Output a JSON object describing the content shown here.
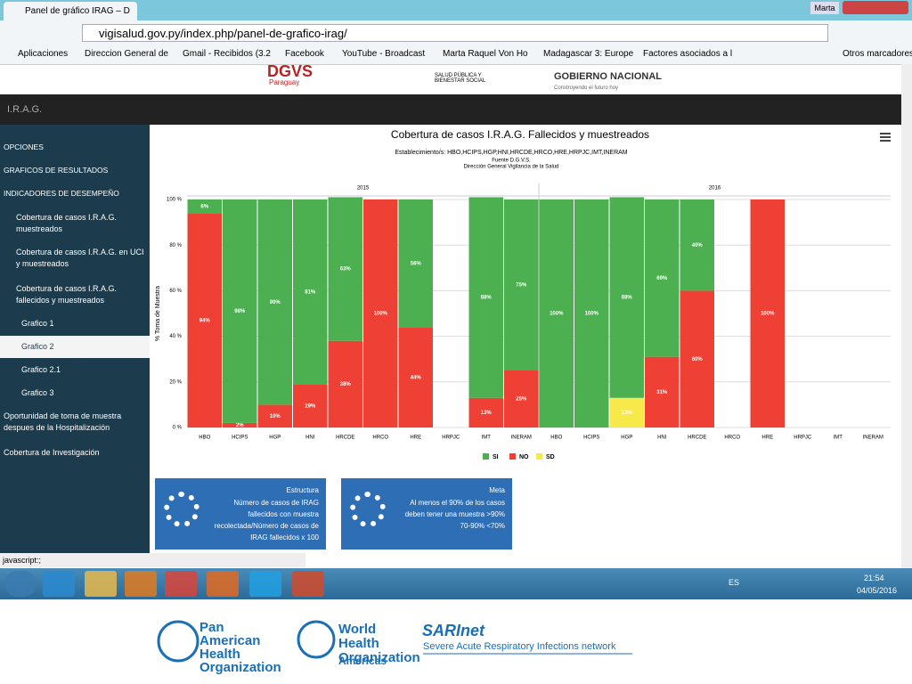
{
  "browser": {
    "tab_title": "Panel de gráfico IRAG – D",
    "user": "Marta",
    "url": "vigisalud.gov.py/index.php/panel-de-grafico-irag/",
    "bookmarks": [
      "Aplicaciones",
      "Direccion General de",
      "Gmail - Recibidos (3.2",
      "Facebook",
      "YouTube - Broadcast",
      "Marta Raquel Von Ho",
      "Madagascar 3: Europe",
      "Factores asociados a l"
    ],
    "other_bookmarks": "Otros marcadores",
    "status": "javascript:;"
  },
  "header": {
    "logo1": "DGVS",
    "logo1_sub": "Paraguay",
    "logo2": "SALUD PÚBLICA Y BIENESTAR SOCIAL",
    "logo3": "GOBIERNO NACIONAL",
    "logo3_sub": "Construyendo el futuro hoy",
    "bar_title": "I.R.A.G."
  },
  "sidebar": [
    "OPCIONES",
    "GRAFICOS DE RESULTADOS",
    "INDICADORES DE DESEMPEÑO",
    "Cobertura de casos I.R.A.G. muestreados",
    "Cobertura de casos I.R.A.G. en UCI y muestreados",
    "Cobertura de casos I.R.A.G. fallecidos y muestreados",
    "Grafico 1",
    "Grafico 2",
    "Grafico 2.1",
    "Grafico 3",
    "Oportunidad de toma de muestra despues de la Hospitalización",
    "Cobertura de Investigación"
  ],
  "chart_data": {
    "type": "stacked_bar",
    "title": "Cobertura de casos I.R.A.G. Fallecidos y muestreados",
    "subtitle": [
      "Establecimiento/s: HBO,HCIPS,HGP,HNI,HRCDE,HRCO,HRE,HRPJC,IMT,INERAM",
      "Fuente D.G.V.S.",
      "Dirección General Vigilancia de la Salud"
    ],
    "groups": [
      "2015",
      "2016"
    ],
    "y_label": "% Toma de Muestra",
    "categories": [
      "HBO",
      "HCIPS",
      "HGP",
      "HNI",
      "HRCDE",
      "HRCO",
      "HRE",
      "HRPJC",
      "IMT",
      "INERAM",
      "HBO",
      "HCIPS",
      "HGP",
      "HNI",
      "HRCDE",
      "HRCO",
      "HRE",
      "HRPJC",
      "IMT",
      "INERAM"
    ],
    "series": [
      {
        "name": "NO",
        "color": "#ef4035",
        "values": [
          94,
          2,
          10,
          19,
          38,
          100,
          44,
          null,
          13,
          25,
          null,
          null,
          null,
          31,
          60,
          null,
          100,
          null,
          null,
          null
        ],
        "value_labels": [
          "94%",
          "2%",
          "10%",
          "19%",
          "38%",
          "100%",
          "44%",
          null,
          "13%",
          "25%",
          null,
          null,
          null,
          "31%",
          "60%",
          null,
          "100%",
          null,
          null,
          null
        ]
      },
      {
        "name": "SD",
        "color": "#f7e94a",
        "values": [
          null,
          null,
          null,
          null,
          null,
          null,
          null,
          null,
          null,
          null,
          null,
          null,
          13,
          null,
          null,
          null,
          null,
          null,
          null,
          null
        ],
        "value_labels": [
          null,
          null,
          null,
          null,
          null,
          null,
          null,
          null,
          null,
          null,
          null,
          null,
          "13%",
          null,
          null,
          null,
          null,
          null,
          null,
          null
        ]
      },
      {
        "name": "SI",
        "color": "#4caf50",
        "values": [
          6,
          98,
          90,
          81,
          63,
          null,
          56,
          null,
          88,
          75,
          100,
          100,
          88,
          69,
          40,
          null,
          null,
          null,
          null,
          null
        ],
        "value_labels": [
          "6%",
          "98%",
          "90%",
          "81%",
          "63%",
          null,
          "56%",
          null,
          "88%",
          "75%",
          "100%",
          "100%",
          "88%",
          "69%",
          "40%",
          null,
          null,
          null,
          null,
          null
        ]
      }
    ],
    "legend_order": [
      "SI",
      "NO",
      "SD"
    ],
    "ylim": [
      0,
      100
    ],
    "yticks": [
      {
        "value": 0,
        "label": "0 %"
      },
      {
        "value": 20,
        "label": "20 %"
      },
      {
        "value": 40,
        "label": "40 %"
      },
      {
        "value": 60,
        "label": "60 %"
      },
      {
        "value": 80,
        "label": "80 %"
      },
      {
        "value": 100,
        "label": "100 %"
      }
    ],
    "grid": true
  },
  "boxes": [
    {
      "title": "Estructura",
      "text": "Número de casos de IRAG fallecidos con muestra recolectada/Número de casos de IRAG fallecidos x 100"
    },
    {
      "title": "Meta",
      "text": "Al menos el 90% de los casos deben tener una muestra >90% 70-90% <70%"
    }
  ],
  "taskbar": {
    "lang": "ES",
    "time": "21:54",
    "date": "04/05/2016"
  },
  "footer": {
    "paho": "Pan American Health Organization",
    "who": "World Health Organization",
    "americas": "Americas",
    "sarinet": "SARInet",
    "sarinet_sub": "Severe Acute Respiratory Infections network"
  }
}
